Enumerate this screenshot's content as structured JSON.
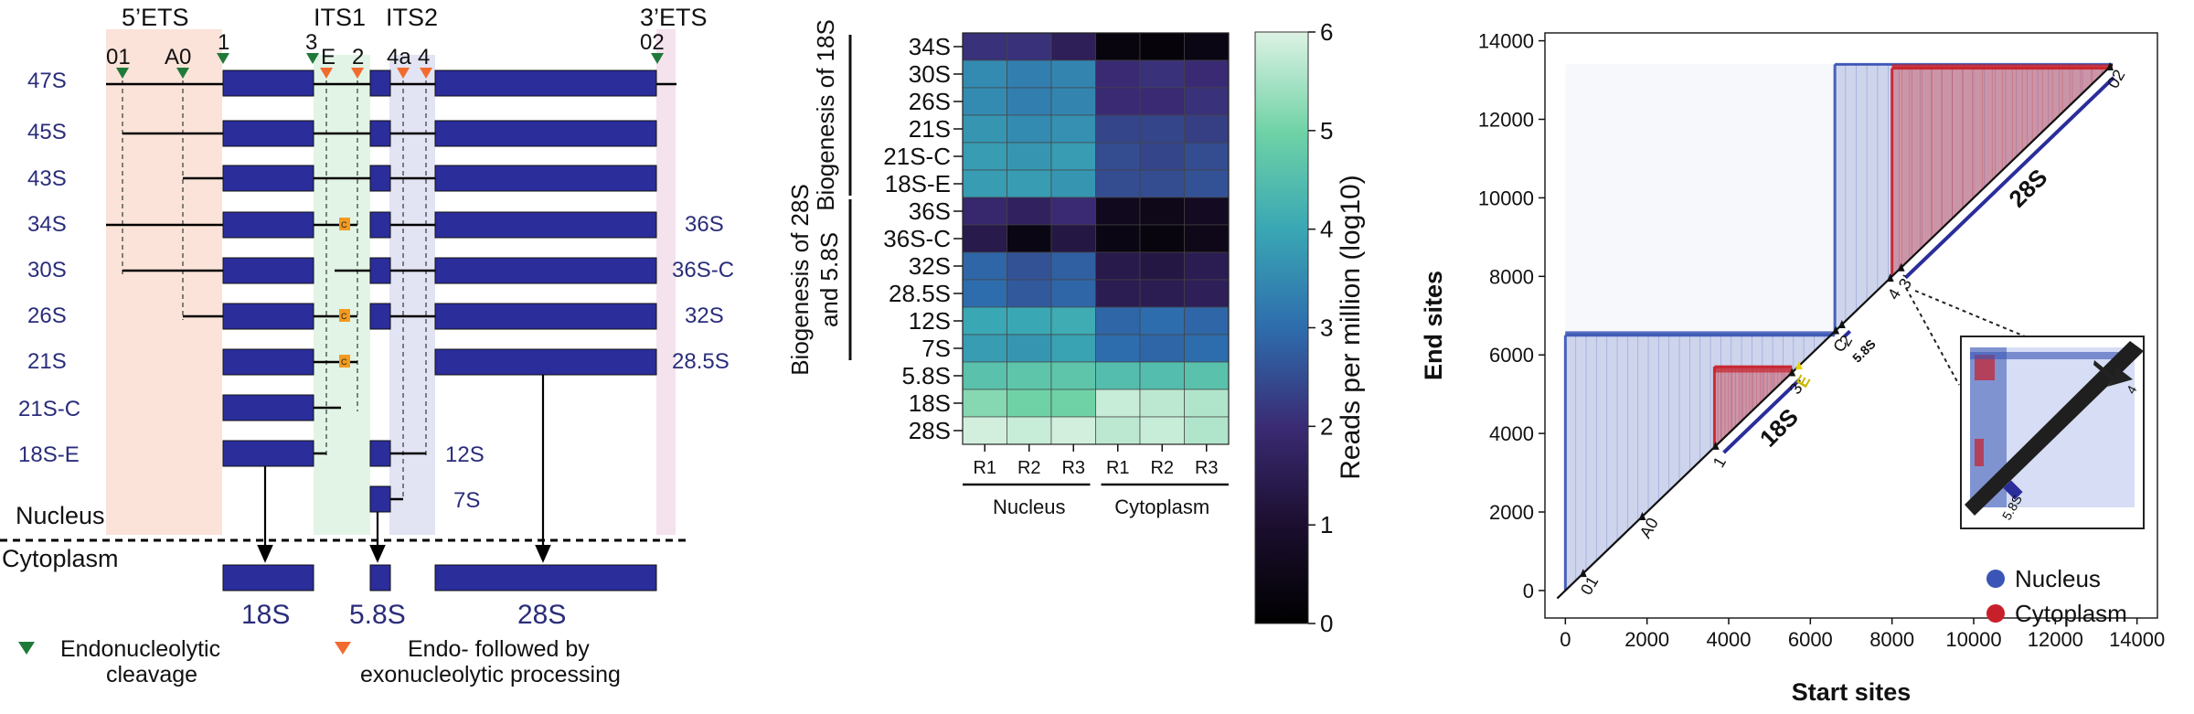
{
  "panel_a": {
    "regions": {
      "ets5": "5’ETS",
      "its1": "ITS1",
      "its2": "ITS2",
      "ets3": "3’ETS"
    },
    "sites": [
      "01",
      "A0",
      "1",
      "3",
      "E",
      "2",
      "4a",
      "4",
      "02"
    ],
    "precursors_left": [
      "47S",
      "45S",
      "43S",
      "34S",
      "30S",
      "26S",
      "21S",
      "21S-C",
      "18S-E"
    ],
    "precursors_right": [
      "36S",
      "36S-C",
      "32S",
      "28.5S",
      "12S",
      "7S"
    ],
    "c_marker": "C",
    "nucleus": "Nucleus",
    "cytoplasm": "Cytoplasm",
    "mature": [
      "18S",
      "5.8S",
      "28S"
    ],
    "legend": {
      "endo": "Endonucleolytic\ncleavage",
      "exo": "Endo- followed by\nexonucleolytic processing"
    },
    "colors": {
      "rna": "#2a2d9a",
      "ets": "#fbe3d9",
      "its1": "#e2f4e6",
      "its2": "#e2e3f3",
      "ets3": "#f4e2ec",
      "green": "#1f7a3a",
      "orange": "#f26b2e"
    }
  },
  "chart_data": [
    {
      "type": "heatmap",
      "title": "",
      "rows": [
        "34S",
        "30S",
        "26S",
        "21S",
        "21S-C",
        "18S-E",
        "36S",
        "36S-C",
        "32S",
        "28.5S",
        "12S",
        "7S",
        "5.8S",
        "18S",
        "28S"
      ],
      "columns": [
        "R1",
        "R2",
        "R3",
        "R1",
        "R2",
        "R3"
      ],
      "column_groups": [
        {
          "name": "Nucleus",
          "span": 3
        },
        {
          "name": "Cytoplasm",
          "span": 3
        }
      ],
      "row_groups": [
        {
          "name": "Biogenesis of 18S",
          "rows": 6
        },
        {
          "name": "Biogenesis of 28S\nand 5.8S",
          "rows": 6
        }
      ],
      "values": [
        [
          2.1,
          2.1,
          1.6,
          0.3,
          0.2,
          0.4
        ],
        [
          3.5,
          3.3,
          3.4,
          2.0,
          2.1,
          2.0
        ],
        [
          3.5,
          3.3,
          3.4,
          2.0,
          2.0,
          2.1
        ],
        [
          3.7,
          3.5,
          3.6,
          2.4,
          2.4,
          2.3
        ],
        [
          3.8,
          3.7,
          3.8,
          2.5,
          2.4,
          2.5
        ],
        [
          3.8,
          3.8,
          3.7,
          2.5,
          2.5,
          2.6
        ],
        [
          1.9,
          1.7,
          2.0,
          0.6,
          0.5,
          0.7
        ],
        [
          1.4,
          0.4,
          1.3,
          0.4,
          0.3,
          0.5
        ],
        [
          2.9,
          2.6,
          2.8,
          1.4,
          1.3,
          1.5
        ],
        [
          3.0,
          2.7,
          2.9,
          1.5,
          1.5,
          1.6
        ],
        [
          4.0,
          4.0,
          4.1,
          2.9,
          3.0,
          2.9
        ],
        [
          3.8,
          3.7,
          3.9,
          3.0,
          2.9,
          3.0
        ],
        [
          4.6,
          4.7,
          4.7,
          4.5,
          4.5,
          4.6
        ],
        [
          5.2,
          5.0,
          5.0,
          5.8,
          5.7,
          5.6
        ],
        [
          5.9,
          5.8,
          5.9,
          5.7,
          5.8,
          5.6
        ]
      ],
      "colorbar": {
        "label": "Reads per million (log10)",
        "min": 0,
        "max": 6,
        "ticks": [
          0,
          1,
          2,
          3,
          4,
          5,
          6
        ]
      }
    },
    {
      "type": "scatter",
      "xlabel": "Start sites",
      "ylabel": "End sites",
      "xlim": [
        -500,
        14500
      ],
      "ylim": [
        -700,
        14200
      ],
      "xticks": [
        0,
        2000,
        4000,
        6000,
        8000,
        10000,
        12000,
        14000
      ],
      "yticks": [
        0,
        2000,
        4000,
        6000,
        8000,
        10000,
        12000,
        14000
      ],
      "series": [
        {
          "name": "Nucleus",
          "color": "#3a55b5"
        },
        {
          "name": "Cytoplasm",
          "color": "#c8202a"
        }
      ],
      "blocks": [
        {
          "series": "Nucleus",
          "x": [
            0,
            6600
          ],
          "y": [
            500,
            6500
          ]
        },
        {
          "series": "Nucleus",
          "x": [
            6600,
            13400
          ],
          "y": [
            6800,
            13400
          ]
        },
        {
          "series": "Cytoplasm",
          "x": [
            3650,
            5550
          ],
          "y": [
            3650,
            5700
          ]
        },
        {
          "series": "Cytoplasm",
          "x": [
            8000,
            13400
          ],
          "y": [
            8000,
            13300
          ]
        }
      ],
      "feature_labels": [
        {
          "label": "18S",
          "pos": 4700
        },
        {
          "label": "28S",
          "pos": 10800
        },
        {
          "label": "5.8S",
          "pos": 6720
        }
      ],
      "site_labels": [
        {
          "label": "01",
          "pos": 414
        },
        {
          "label": "A0",
          "pos": 1862
        },
        {
          "label": "1",
          "pos": 3657
        },
        {
          "label": "3",
          "pos": 5527
        },
        {
          "label": "E",
          "pos": 5700
        },
        {
          "label": "C",
          "pos": 6600
        },
        {
          "label": "2",
          "pos": 6750
        },
        {
          "label": "4",
          "pos": 7934
        },
        {
          "label": "3’",
          "pos": 8200
        },
        {
          "label": "02",
          "pos": 13314
        }
      ],
      "inset_labels": [
        "5.8S",
        "4"
      ],
      "legend": [
        "Nucleus",
        "Cytoplasm"
      ],
      "legend_position": "bottom-right"
    }
  ]
}
